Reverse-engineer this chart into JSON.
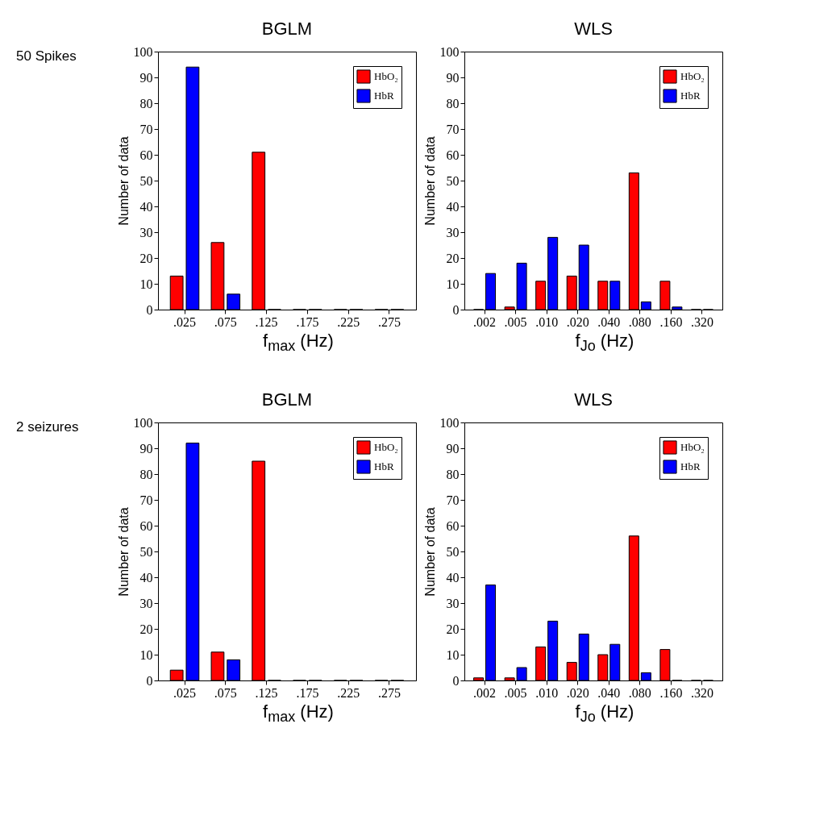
{
  "chart_data": [
    {
      "type": "bar",
      "title": "BGLM",
      "annotations": [
        "50 Spikes"
      ],
      "xlabel": "f$_{max}$ (Hz)",
      "ylabel": "Number of data",
      "categories": [
        ".025",
        ".075",
        ".125",
        ".175",
        ".225",
        ".275"
      ],
      "series": [
        {
          "name": "HbO₂",
          "color": "#ff0000",
          "values": [
            13,
            26,
            61,
            0,
            0,
            0
          ]
        },
        {
          "name": "HbR",
          "color": "#0000ff",
          "values": [
            94,
            6,
            0,
            0,
            0,
            0
          ]
        }
      ],
      "ylim": [
        0,
        100
      ],
      "yticks": [
        0,
        10,
        20,
        30,
        40,
        50,
        60,
        70,
        80,
        90,
        100
      ],
      "grid": false,
      "legend": "top right"
    },
    {
      "type": "bar",
      "title": "WLS",
      "xlabel": "f$_{Jo}$ (Hz)",
      "ylabel": "Number of data",
      "categories": [
        ".002",
        ".005",
        ".010",
        ".020",
        ".040",
        ".080",
        ".160",
        ".320"
      ],
      "series": [
        {
          "name": "HbO₂",
          "color": "#ff0000",
          "values": [
            0,
            1,
            11,
            13,
            11,
            53,
            11,
            0
          ]
        },
        {
          "name": "HbR",
          "color": "#0000ff",
          "values": [
            14,
            18,
            28,
            25,
            11,
            3,
            1,
            0
          ]
        }
      ],
      "ylim": [
        0,
        100
      ],
      "yticks": [
        0,
        10,
        20,
        30,
        40,
        50,
        60,
        70,
        80,
        90,
        100
      ],
      "grid": false,
      "legend": "top right"
    },
    {
      "type": "bar",
      "title": "BGLM",
      "annotations": [
        "2 seizures"
      ],
      "xlabel": "f$_{max}$ (Hz)",
      "ylabel": "Number of data",
      "categories": [
        ".025",
        ".075",
        ".125",
        ".175",
        ".225",
        ".275"
      ],
      "series": [
        {
          "name": "HbO₂",
          "color": "#ff0000",
          "values": [
            4,
            11,
            85,
            0,
            0,
            0
          ]
        },
        {
          "name": "HbR",
          "color": "#0000ff",
          "values": [
            92,
            8,
            0,
            0,
            0,
            0
          ]
        }
      ],
      "ylim": [
        0,
        100
      ],
      "yticks": [
        0,
        10,
        20,
        30,
        40,
        50,
        60,
        70,
        80,
        90,
        100
      ],
      "grid": false,
      "legend": "top right"
    },
    {
      "type": "bar",
      "title": "WLS",
      "xlabel": "f$_{Jo}$ (Hz)",
      "ylabel": "Number of data",
      "categories": [
        ".002",
        ".005",
        ".010",
        ".020",
        ".040",
        ".080",
        ".160",
        ".320"
      ],
      "series": [
        {
          "name": "HbO₂",
          "color": "#ff0000",
          "values": [
            1,
            1,
            13,
            7,
            10,
            56,
            12,
            0
          ]
        },
        {
          "name": "HbR",
          "color": "#0000ff",
          "values": [
            37,
            5,
            23,
            18,
            14,
            3,
            0,
            0
          ]
        }
      ],
      "ylim": [
        0,
        100
      ],
      "yticks": [
        0,
        10,
        20,
        30,
        40,
        50,
        60,
        70,
        80,
        90,
        100
      ],
      "grid": false,
      "legend": "top right"
    }
  ]
}
